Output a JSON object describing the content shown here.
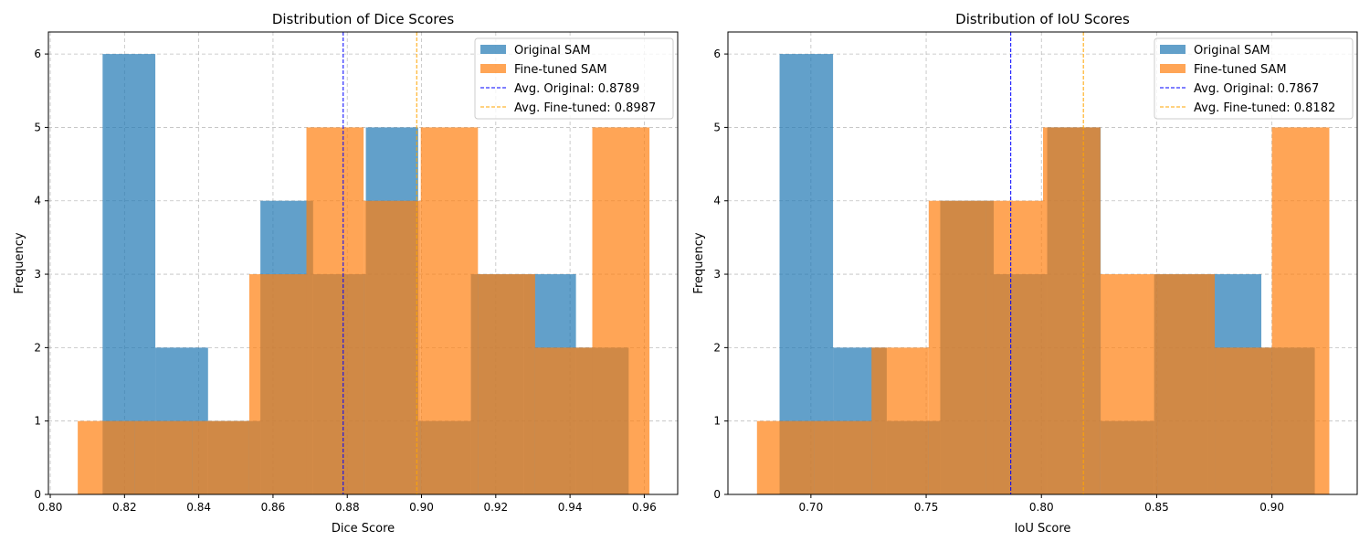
{
  "chart_data": [
    {
      "type": "histogram",
      "title": "Distribution of Dice Scores",
      "xlabel": "Dice Score",
      "ylabel": "Frequency",
      "xlim": [
        0.7995,
        0.969
      ],
      "ylim": [
        0,
        6.3
      ],
      "xticks": [
        0.8,
        0.82,
        0.84,
        0.86,
        0.88,
        0.9,
        0.92,
        0.94,
        0.96
      ],
      "xtick_labels": [
        "0.80",
        "0.82",
        "0.84",
        "0.86",
        "0.88",
        "0.90",
        "0.92",
        "0.94",
        "0.96"
      ],
      "yticks": [
        0,
        1,
        2,
        3,
        4,
        5,
        6
      ],
      "ytick_labels": [
        "0",
        "1",
        "2",
        "3",
        "4",
        "5",
        "6"
      ],
      "grid": true,
      "legend_position": "top-right",
      "series": [
        {
          "name": "Original SAM",
          "color": "#1f77b4",
          "bin_edges": [
            0.8141,
            0.8283,
            0.8425,
            0.8566,
            0.8708,
            0.885,
            0.8991,
            0.9133,
            0.9275,
            0.9416,
            0.9558
          ],
          "counts": [
            6,
            2,
            1,
            4,
            3,
            5,
            1,
            3,
            3,
            2
          ]
        },
        {
          "name": "Fine-tuned SAM",
          "color": "#ff7f0e",
          "bin_edges": [
            0.8074,
            0.8228,
            0.8382,
            0.8536,
            0.869,
            0.8844,
            0.8998,
            0.9152,
            0.9306,
            0.946,
            0.9614
          ],
          "counts": [
            1,
            1,
            1,
            3,
            5,
            4,
            5,
            3,
            2,
            5
          ]
        }
      ],
      "averages": [
        {
          "label": "Avg. Original: 0.8789",
          "value": 0.8789,
          "color": "#0000ff"
        },
        {
          "label": "Avg. Fine-tuned: 0.8987",
          "value": 0.8987,
          "color": "#ffa500"
        }
      ]
    },
    {
      "type": "histogram",
      "title": "Distribution of IoU Scores",
      "xlabel": "IoU Score",
      "ylabel": "Frequency",
      "xlim": [
        0.664,
        0.937
      ],
      "ylim": [
        0,
        6.3
      ],
      "xticks": [
        0.7,
        0.75,
        0.8,
        0.85,
        0.9
      ],
      "xtick_labels": [
        "0.70",
        "0.75",
        "0.80",
        "0.85",
        "0.90"
      ],
      "yticks": [
        0,
        1,
        2,
        3,
        4,
        5,
        6
      ],
      "ytick_labels": [
        "0",
        "1",
        "2",
        "3",
        "4",
        "5",
        "6"
      ],
      "grid": true,
      "legend_position": "top-right",
      "series": [
        {
          "name": "Original SAM",
          "color": "#1f77b4",
          "bin_edges": [
            0.6864,
            0.7096,
            0.7329,
            0.7561,
            0.7793,
            0.8025,
            0.8257,
            0.8489,
            0.8722,
            0.8954,
            0.9186
          ],
          "counts": [
            6,
            2,
            1,
            4,
            3,
            5,
            1,
            3,
            3,
            2
          ]
        },
        {
          "name": "Fine-tuned SAM",
          "color": "#ff7f0e",
          "bin_edges": [
            0.6766,
            0.7014,
            0.7263,
            0.7511,
            0.7759,
            0.8007,
            0.8256,
            0.8504,
            0.8752,
            0.9,
            0.9249
          ],
          "counts": [
            1,
            1,
            2,
            4,
            4,
            5,
            3,
            3,
            2,
            5
          ]
        }
      ],
      "averages": [
        {
          "label": "Avg. Original: 0.7867",
          "value": 0.7867,
          "color": "#0000ff"
        },
        {
          "label": "Avg. Fine-tuned: 0.8182",
          "value": 0.8182,
          "color": "#ffa500"
        }
      ]
    }
  ]
}
